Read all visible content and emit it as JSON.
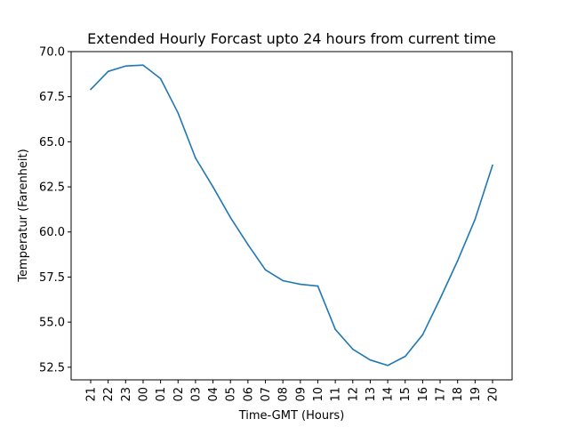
{
  "chart_data": {
    "type": "line",
    "title": "Extended Hourly Forcast upto 24 hours from current time",
    "xlabel": "Time-GMT (Hours)",
    "ylabel": "Temperatur (Farenheit)",
    "categories": [
      "21",
      "22",
      "23",
      "00",
      "01",
      "02",
      "03",
      "04",
      "05",
      "06",
      "07",
      "08",
      "09",
      "10",
      "11",
      "12",
      "13",
      "14",
      "15",
      "16",
      "17",
      "18",
      "19",
      "20"
    ],
    "series": [
      {
        "values": [
          67.9,
          68.9,
          69.2,
          69.25,
          68.5,
          66.6,
          64.1,
          62.5,
          60.8,
          59.3,
          57.9,
          57.3,
          57.1,
          57.0,
          54.6,
          53.5,
          52.9,
          52.6,
          53.1,
          54.3,
          56.3,
          58.4,
          60.7,
          63.7
        ],
        "color": "#1f77b4"
      }
    ],
    "ylim": [
      51.8,
      70.0
    ],
    "yticks": [
      52.5,
      55.0,
      57.5,
      60.0,
      62.5,
      65.0,
      67.5,
      70.0
    ],
    "ytick_labels": [
      "52.5",
      "55.0",
      "57.5",
      "60.0",
      "62.5",
      "65.0",
      "67.5",
      "70.0"
    ],
    "grid": false,
    "legend": "none"
  }
}
